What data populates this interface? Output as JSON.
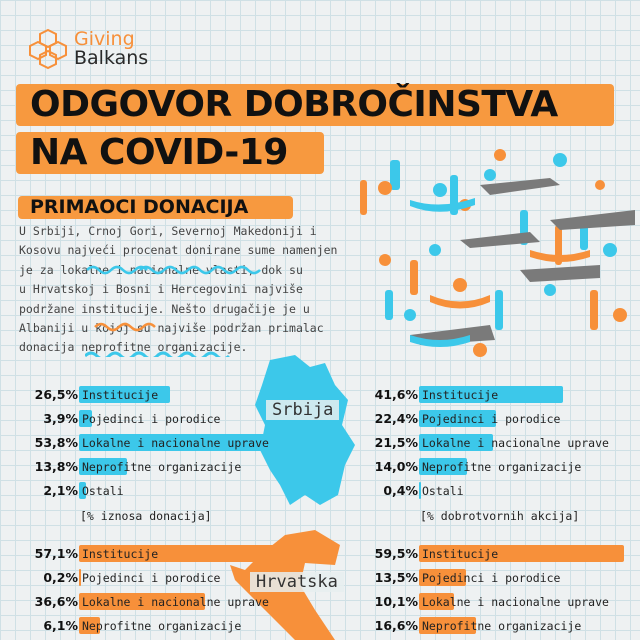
{
  "logo": {
    "line1": "Giving",
    "line2": "Balkans"
  },
  "title": {
    "line1": "ODGOVOR DOBROČINSTVA",
    "line2": "NA COVID-19"
  },
  "section": {
    "heading": "PRIMAOCI DONACIJA",
    "paragraph": "U Srbiji, Crnoj Gori, Severnoj Makedoniji i\nKosovu najveći procenat donirane sume namenjen\nje za lokalne i nacionalne vlasti, dok su\nu Hrvatskoj i Bosni i Hercegovini najviše\npodržane institucije. Nešto drugačije je u\nAlbaniji u kojoj su najviše podržan primalac\ndonacija neprofitne organizacije."
  },
  "maps": {
    "serbia": "Srbija",
    "croatia": "Hrvatska"
  },
  "colors": {
    "serbia": "#3cc8ea",
    "croatia": "#f7903a",
    "band": "#f7993f"
  },
  "chart_data": [
    {
      "type": "bar",
      "orientation": "horizontal",
      "region": "Srbija",
      "note": "[% iznosa donacija]",
      "unit": "%",
      "categories": [
        "Institucije",
        "Pojedinci i porodice",
        "Lokalne i nacionalne uprave",
        "Neprofitne organizacije",
        "Ostali"
      ],
      "values": [
        26.5,
        3.9,
        53.8,
        13.8,
        2.1
      ],
      "labels": [
        "26,5%",
        "3,9%",
        "53,8%",
        "13,8%",
        "2,1%"
      ]
    },
    {
      "type": "bar",
      "orientation": "horizontal",
      "region": "Srbija",
      "note": "[% dobrotvornih akcija]",
      "unit": "%",
      "categories": [
        "Institucije",
        "Pojedinci i porodice",
        "Lokalne i nacionalne uprave",
        "Neprofitne organizacije",
        "Ostali"
      ],
      "values": [
        41.6,
        22.4,
        21.5,
        14.0,
        0.4
      ],
      "labels": [
        "41,6%",
        "22,4%",
        "21,5%",
        "14,0%",
        "0,4%"
      ]
    },
    {
      "type": "bar",
      "orientation": "horizontal",
      "region": "Hrvatska",
      "unit": "%",
      "categories": [
        "Institucije",
        "Pojedinci i porodice",
        "Lokalne i nacionalne uprave",
        "Neprofitne organizacije"
      ],
      "values": [
        57.1,
        0.2,
        36.6,
        6.1
      ],
      "labels": [
        "57,1%",
        "0,2%",
        "36,6%",
        "6,1%"
      ]
    },
    {
      "type": "bar",
      "orientation": "horizontal",
      "region": "Hrvatska",
      "unit": "%",
      "categories": [
        "Institucije",
        "Pojedinci i porodice",
        "Lokalne i nacionalne uprave",
        "Neprofitne organizacije"
      ],
      "values": [
        59.5,
        13.5,
        10.1,
        16.6
      ],
      "labels": [
        "59,5%",
        "13,5%",
        "10,1%",
        "16,6%"
      ]
    }
  ]
}
